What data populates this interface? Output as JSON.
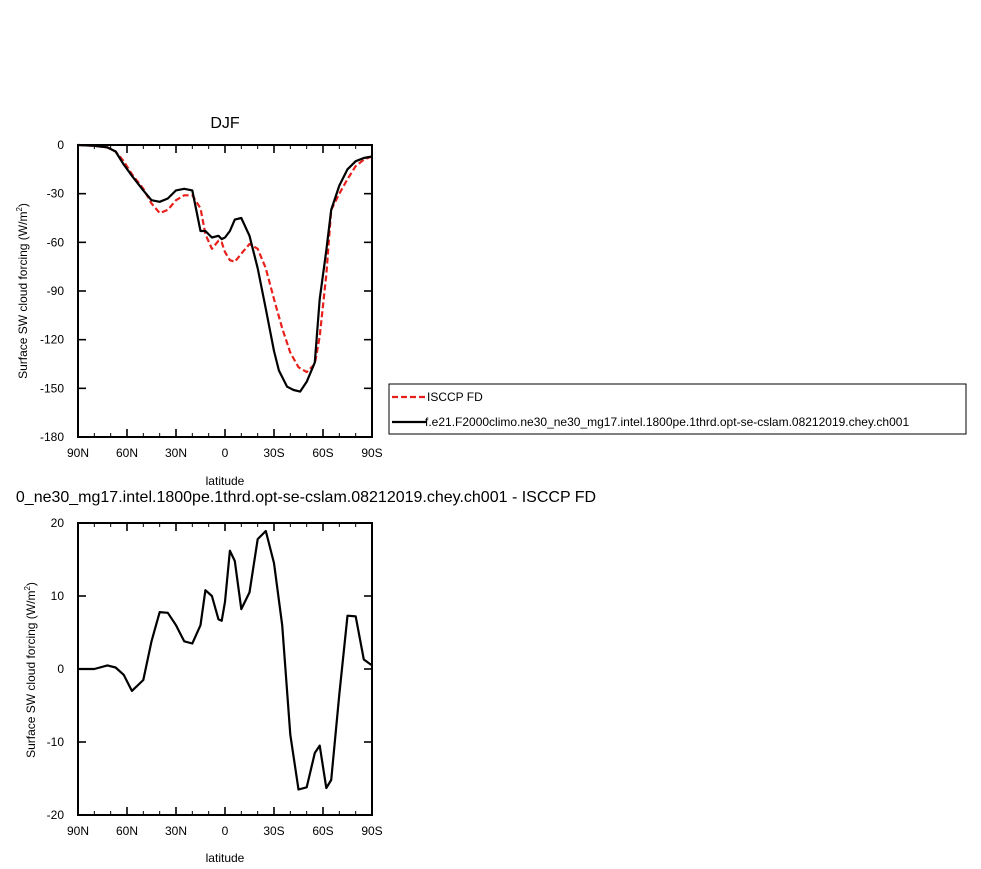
{
  "chart_data": [
    {
      "type": "line",
      "title": "DJF",
      "xlabel": "latitude",
      "ylabel": "Surface SW cloud forcing (W/m",
      "ylabel_sup": "2",
      "ylabel_end": ")",
      "xlim": [
        90,
        -90
      ],
      "ylim": [
        -180,
        0
      ],
      "xtick_values": [
        90,
        60,
        30,
        0,
        -30,
        -60,
        -90
      ],
      "xtick_labels": [
        "90N",
        "60N",
        "30N",
        "0",
        "30S",
        "60S",
        "90S"
      ],
      "ytick_values": [
        0,
        -30,
        -60,
        -90,
        -120,
        -150,
        -180
      ],
      "ytick_labels": [
        "0",
        "-30",
        "-60",
        "-90",
        "-120",
        "-150",
        "-180"
      ],
      "legend_position": "right",
      "series": [
        {
          "name": "ISCCP FD",
          "color": "#e8201c",
          "dash": "dashed",
          "x": [
            90,
            80,
            72,
            67,
            62,
            57,
            50,
            45,
            40,
            35,
            30,
            25,
            20,
            15,
            12,
            8,
            4,
            2,
            0,
            -3,
            -6,
            -10,
            -15,
            -20,
            -25,
            -30,
            -35,
            -40,
            -45,
            -50,
            -55,
            -58,
            -62,
            -65,
            -70,
            -75,
            -80,
            -85,
            -90
          ],
          "y": [
            0,
            -0.5,
            -1.5,
            -4,
            -10,
            -18,
            -27,
            -36,
            -42,
            -40,
            -34,
            -31,
            -31,
            -39,
            -55,
            -64,
            -59,
            -60,
            -66,
            -71,
            -72,
            -67,
            -61,
            -64,
            -76,
            -95,
            -113,
            -128,
            -137,
            -140,
            -135,
            -118,
            -80,
            -40,
            -30,
            -21,
            -13,
            -9,
            -7
          ]
        },
        {
          "name": "f.e21.F2000climo.ne30_ne30_mg17.intel.1800pe.1thrd.opt-se-cslam.08212019.chey.ch001",
          "color": "#000000",
          "dash": "solid",
          "x": [
            90,
            80,
            72,
            67,
            62,
            57,
            50,
            45,
            40,
            35,
            30,
            25,
            20,
            15,
            12,
            8,
            4,
            2,
            0,
            -3,
            -6,
            -10,
            -15,
            -20,
            -25,
            -30,
            -33,
            -38,
            -42,
            -46,
            -50,
            -55,
            -58,
            -62,
            -65,
            -70,
            -75,
            -80,
            -85,
            -90
          ],
          "y": [
            0,
            -0.5,
            -1.5,
            -4,
            -12,
            -19,
            -28,
            -34,
            -35,
            -33,
            -28,
            -27,
            -28,
            -53,
            -53,
            -57,
            -56,
            -58,
            -57,
            -53,
            -46,
            -45,
            -56,
            -76,
            -101,
            -127,
            -139,
            -149,
            -151,
            -152,
            -146,
            -134,
            -95,
            -65,
            -40,
            -25,
            -15,
            -10,
            -8,
            -7
          ]
        }
      ]
    },
    {
      "type": "line",
      "title": "0_ne30_mg17.intel.1800pe.1thrd.opt-se-cslam.08212019.chey.ch001 - ISCCP FD",
      "xlabel": "latitude",
      "ylabel": "Surface SW cloud forcing (W/m",
      "ylabel_sup": "2",
      "ylabel_end": ")",
      "xlim": [
        90,
        -90
      ],
      "ylim": [
        -20,
        20
      ],
      "xtick_values": [
        90,
        60,
        30,
        0,
        -30,
        -60,
        -90
      ],
      "xtick_labels": [
        "90N",
        "60N",
        "30N",
        "0",
        "30S",
        "60S",
        "90S"
      ],
      "ytick_values": [
        20,
        10,
        0,
        -10,
        -20
      ],
      "ytick_labels": [
        "20",
        "10",
        "0",
        "-10",
        "-20"
      ],
      "series": [
        {
          "color": "#000000",
          "dash": "solid",
          "x": [
            90,
            80,
            72,
            67,
            62,
            57,
            50,
            45,
            40,
            35,
            30,
            25,
            20,
            15,
            12,
            8,
            4,
            2,
            0,
            -3,
            -6,
            -10,
            -15,
            -20,
            -25,
            -30,
            -35,
            -40,
            -45,
            -50,
            -55,
            -58,
            -62,
            -65,
            -70,
            -75,
            -80,
            -85,
            -90
          ],
          "y": [
            0,
            0,
            0.5,
            0.2,
            -0.8,
            -3,
            -1.5,
            3.8,
            7.8,
            7.7,
            6,
            3.8,
            3.5,
            6,
            10.8,
            10,
            6.8,
            6.6,
            9.2,
            16.2,
            14.8,
            8.2,
            10.5,
            17.8,
            18.9,
            14.5,
            6,
            -9,
            -16.5,
            -16.2,
            -11.5,
            -10.5,
            -16.3,
            -15.2,
            -3.5,
            7.3,
            7.2,
            1.3,
            0.5
          ]
        }
      ]
    }
  ]
}
